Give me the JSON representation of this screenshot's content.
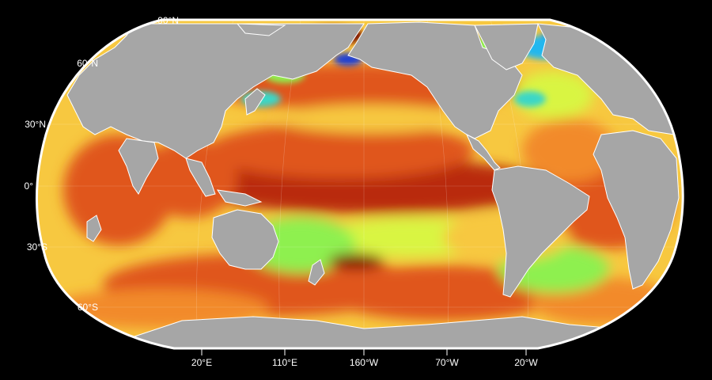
{
  "map": {
    "projection": "Robinson",
    "center_longitude": "160°W",
    "land_color": "#a6a6a6",
    "coastline_color": "#ffffff",
    "frame_color": "#ffffff",
    "background_color": "#000000",
    "ocean_colormap": [
      "#3ad7c7",
      "#8ef050",
      "#d9f542",
      "#f7c840",
      "#f28a2c",
      "#e0561c",
      "#b92a0e",
      "#7a0c04"
    ],
    "high_latitude_extremes": [
      "#1a3fd6",
      "#23b7ef"
    ]
  },
  "latitude_labels": [
    "90°N",
    "60°N",
    "30°N",
    "0°",
    "30°S",
    "60°S"
  ],
  "longitude_labels": [
    "20°E",
    "110°E",
    "160°W",
    "70°W",
    "20°W"
  ],
  "gridlines": true
}
